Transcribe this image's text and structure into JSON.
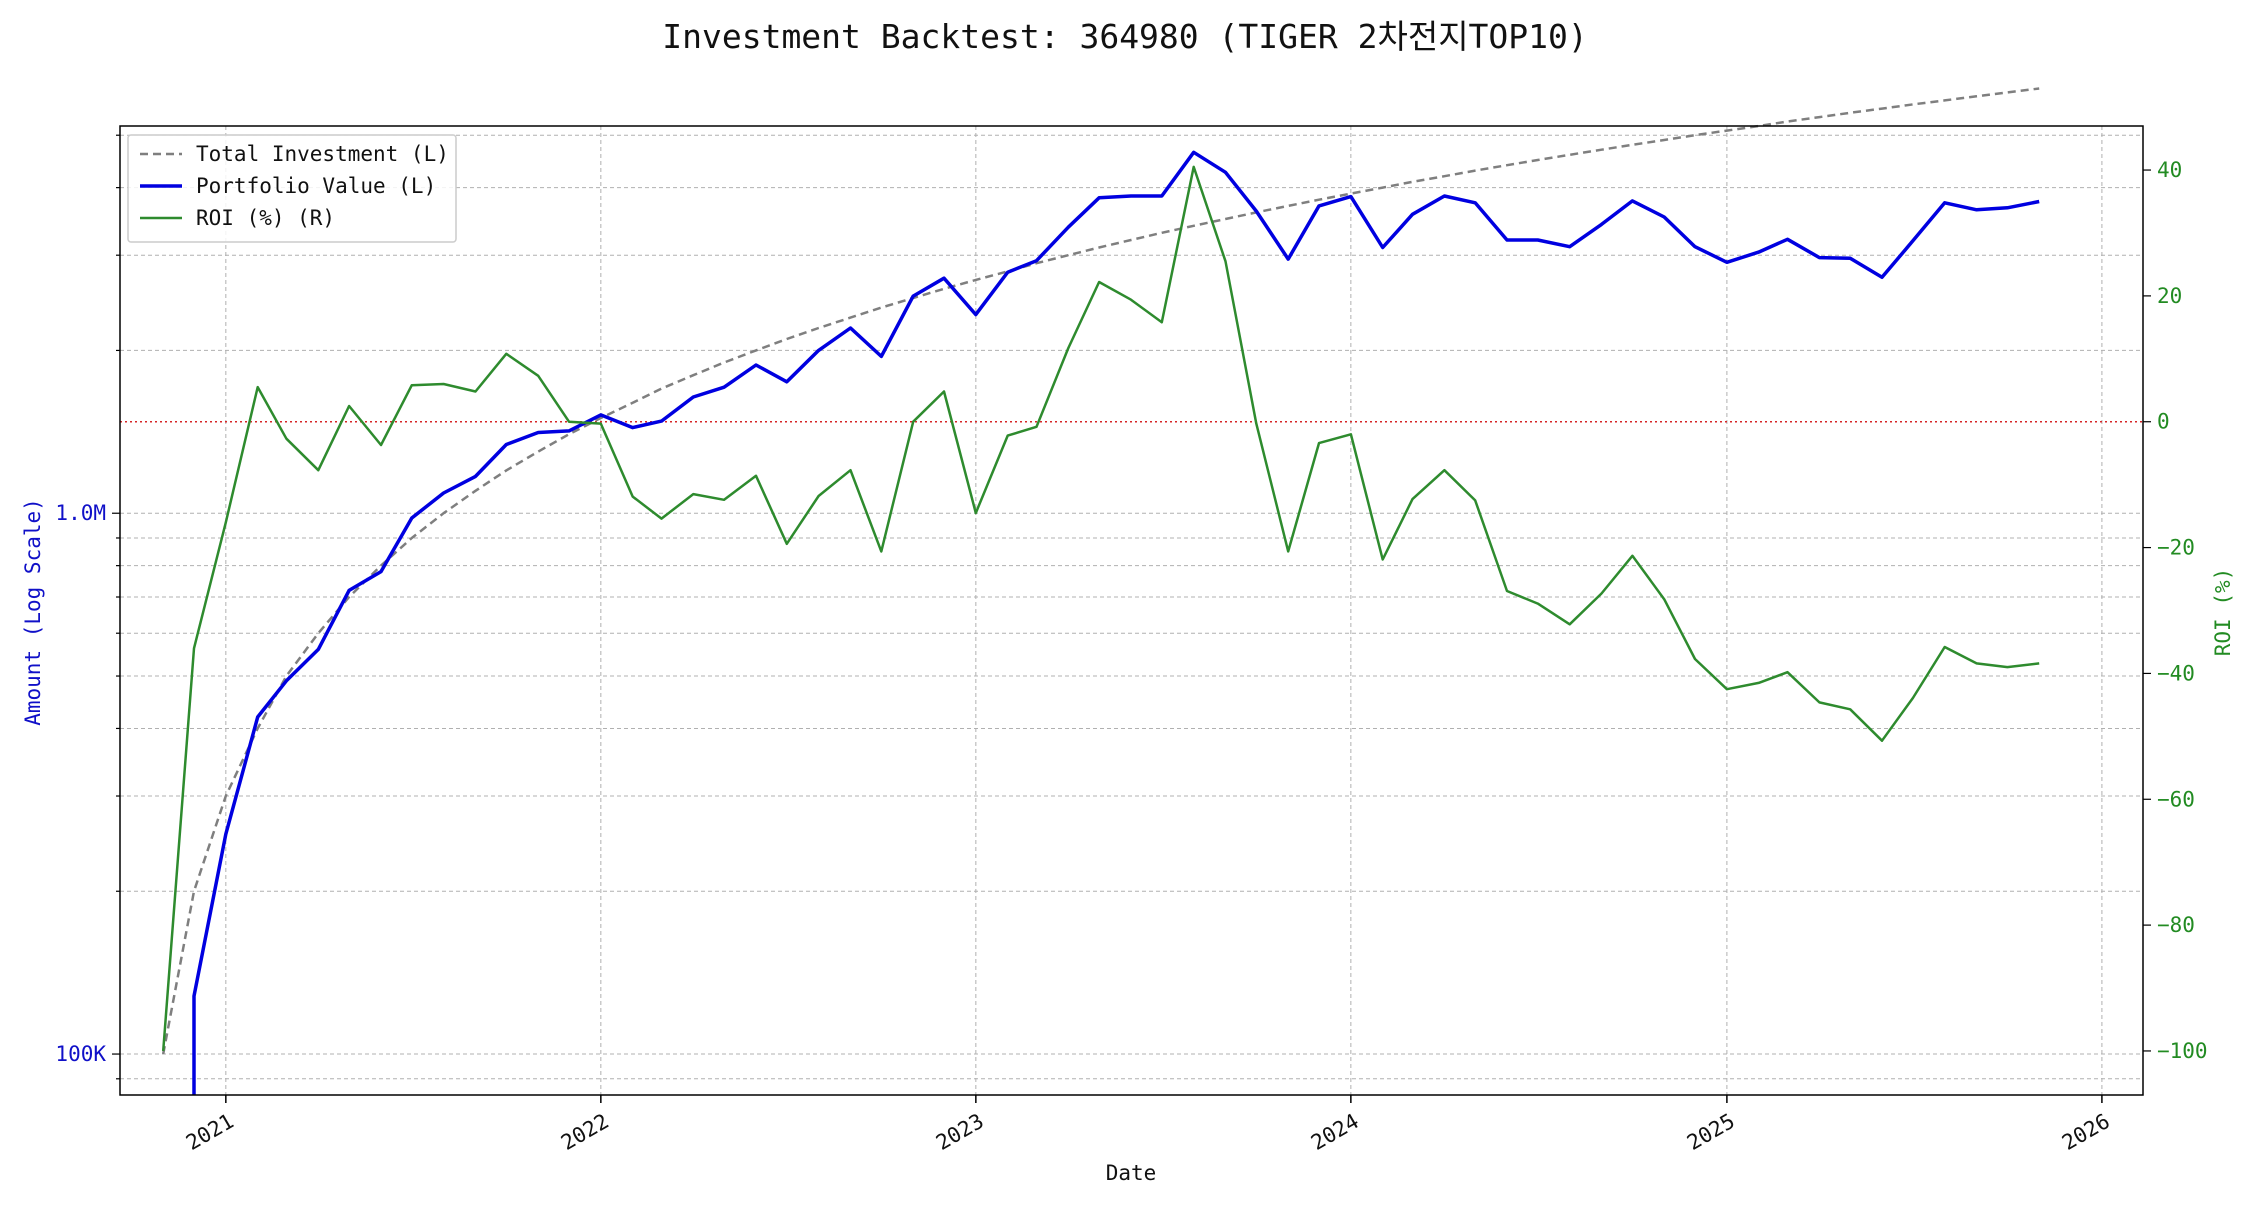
{
  "chart_data": {
    "type": "line",
    "title": "Investment Backtest: 364980 (TIGER 2차전지TOP10)",
    "xlabel": "Date",
    "ylabel_left": "Amount (Log Scale)",
    "ylabel_right": "ROI (%)",
    "left_scale": "log",
    "left_ylim": [
      84000,
      5200000
    ],
    "right_ylim": [
      -107,
      47
    ],
    "xlim": [
      "2020-09-20",
      "2026-02-10"
    ],
    "grid": true,
    "legend_position": "top-left",
    "x_ticks": [
      "2021",
      "2022",
      "2023",
      "2024",
      "2025",
      "2026"
    ],
    "left_ticks": [
      {
        "value": 100000,
        "label": "100K"
      },
      {
        "value": 1000000,
        "label": "1.0M"
      }
    ],
    "right_ticks": [
      {
        "value": 40,
        "label": "40"
      },
      {
        "value": 20,
        "label": "20"
      },
      {
        "value": 0,
        "label": "0"
      },
      {
        "value": -20,
        "label": "−20"
      },
      {
        "value": -40,
        "label": "−40"
      },
      {
        "value": -60,
        "label": "−60"
      },
      {
        "value": -80,
        "label": "−80"
      },
      {
        "value": -100,
        "label": "−100"
      }
    ],
    "colors": {
      "left_axis": "#1010c8",
      "right_axis": "#228b22",
      "zero_line": "#d62728"
    },
    "reference_line": {
      "axis": "right",
      "value": 0
    },
    "series": [
      {
        "name": "Total Investment (L)",
        "axis": "left",
        "style": "dashed",
        "color": "#7f7f7f",
        "x": [
          "2020-11-01",
          "2020-12-01",
          "2021-01-01",
          "2021-02-01",
          "2021-03-01",
          "2021-04-01",
          "2021-05-01",
          "2021-06-01",
          "2021-07-01",
          "2021-08-01",
          "2021-09-01",
          "2021-10-01",
          "2021-11-01",
          "2021-12-01",
          "2022-01-01",
          "2022-02-01",
          "2022-03-01",
          "2022-04-01",
          "2022-05-01",
          "2022-06-01",
          "2022-07-01",
          "2022-08-01",
          "2022-09-01",
          "2022-10-01",
          "2022-11-01",
          "2022-12-01",
          "2023-01-01",
          "2023-02-01",
          "2023-03-01",
          "2023-04-01",
          "2023-05-01",
          "2023-06-01",
          "2023-07-01",
          "2023-08-01",
          "2023-09-01",
          "2023-10-01",
          "2023-11-01",
          "2023-12-01",
          "2024-01-01",
          "2024-02-01",
          "2024-03-01",
          "2024-04-01",
          "2024-05-01",
          "2024-06-01",
          "2024-07-01",
          "2024-08-01",
          "2024-09-01",
          "2024-10-01",
          "2024-11-01",
          "2024-12-01",
          "2025-01-01",
          "2025-02-01",
          "2025-03-01",
          "2025-04-01",
          "2025-05-01",
          "2025-06-01",
          "2025-07-01",
          "2025-08-01",
          "2025-09-01",
          "2025-10-01",
          "2025-11-01"
        ],
        "values": [
          100000,
          200000,
          300000,
          400000,
          500000,
          600000,
          700000,
          800000,
          900000,
          1000000,
          1100000,
          1200000,
          1300000,
          1400000,
          1500000,
          1600000,
          1700000,
          1800000,
          1900000,
          2000000,
          2100000,
          2200000,
          2300000,
          2400000,
          2500000,
          2600000,
          2700000,
          2800000,
          2900000,
          3000000,
          3100000,
          3200000,
          3300000,
          3400000,
          3500000,
          3600000,
          3700000,
          3800000,
          3900000,
          4000000,
          4100000,
          4200000,
          4300000,
          4400000,
          4500000,
          4600000,
          4700000,
          4800000,
          4900000,
          5000000,
          5100000,
          5200000,
          5300000,
          5400000,
          5500000,
          5600000,
          5700000,
          5800000,
          5900000,
          6000000,
          6100000
        ]
      },
      {
        "name": "Portfolio Value (L)",
        "axis": "left",
        "style": "solid",
        "color": "#0000e0",
        "x": [
          "2020-12-01",
          "2021-01-01",
          "2021-02-01",
          "2021-03-01",
          "2021-04-01",
          "2021-05-01",
          "2021-06-01",
          "2021-07-01",
          "2021-08-01",
          "2021-09-01",
          "2021-10-01",
          "2021-11-01",
          "2021-12-01",
          "2022-01-01",
          "2022-02-01",
          "2022-03-01",
          "2022-04-01",
          "2022-05-01",
          "2022-06-01",
          "2022-07-01",
          "2022-08-01",
          "2022-09-01",
          "2022-10-01",
          "2022-11-01",
          "2022-12-01",
          "2023-01-01",
          "2023-02-01",
          "2023-03-01",
          "2023-04-01",
          "2023-05-01",
          "2023-06-01",
          "2023-07-01",
          "2023-08-01",
          "2023-09-01",
          "2023-10-01",
          "2023-11-01",
          "2023-12-01",
          "2024-01-01",
          "2024-02-01",
          "2024-03-01",
          "2024-04-01",
          "2024-05-01",
          "2024-06-01",
          "2024-07-01",
          "2024-08-01",
          "2024-09-01",
          "2024-10-01",
          "2024-11-01",
          "2024-12-01",
          "2025-01-01",
          "2025-02-01",
          "2025-03-01",
          "2025-04-01",
          "2025-05-01",
          "2025-06-01",
          "2025-07-01",
          "2025-08-01",
          "2025-09-01",
          "2025-10-01",
          "2025-11-01"
        ],
        "values": [
          128000,
          255000,
          420000,
          490000,
          560000,
          720000,
          780000,
          980000,
          1090000,
          1170000,
          1340000,
          1410000,
          1420000,
          1520000,
          1440000,
          1480000,
          1640000,
          1710000,
          1880000,
          1750000,
          2000000,
          2200000,
          1950000,
          2520000,
          2720000,
          2330000,
          2790000,
          2930000,
          3380000,
          3830000,
          3860000,
          3860000,
          4650000,
          4270000,
          3620000,
          2950000,
          3700000,
          3850000,
          3100000,
          3570000,
          3860000,
          3750000,
          3200000,
          3200000,
          3110000,
          3420000,
          3780000,
          3530000,
          3110000,
          2910000,
          3040000,
          3210000,
          2970000,
          2960000,
          2730000,
          3190000,
          3750000,
          3640000,
          3670000,
          3770000
        ]
      },
      {
        "name": "ROI (%) (R)",
        "axis": "right",
        "style": "solid",
        "color": "#2e8b2e",
        "x": [
          "2020-11-01",
          "2020-12-01",
          "2021-01-01",
          "2021-02-01",
          "2021-03-01",
          "2021-04-01",
          "2021-05-01",
          "2021-06-01",
          "2021-07-01",
          "2021-08-01",
          "2021-09-01",
          "2021-10-01",
          "2021-11-01",
          "2021-12-01",
          "2022-01-01",
          "2022-02-01",
          "2022-03-01",
          "2022-04-01",
          "2022-05-01",
          "2022-06-01",
          "2022-07-01",
          "2022-08-01",
          "2022-09-01",
          "2022-10-01",
          "2022-11-01",
          "2022-12-01",
          "2023-01-01",
          "2023-02-01",
          "2023-03-01",
          "2023-04-01",
          "2023-05-01",
          "2023-06-01",
          "2023-07-01",
          "2023-08-01",
          "2023-09-01",
          "2023-10-01",
          "2023-11-01",
          "2023-12-01",
          "2024-01-01",
          "2024-02-01",
          "2024-03-01",
          "2024-04-01",
          "2024-05-01",
          "2024-06-01",
          "2024-07-01",
          "2024-08-01",
          "2024-09-01",
          "2024-10-01",
          "2024-11-01",
          "2024-12-01",
          "2025-01-01",
          "2025-02-01",
          "2025-03-01",
          "2025-04-01",
          "2025-05-01",
          "2025-06-01",
          "2025-07-01",
          "2025-08-01",
          "2025-09-01",
          "2025-10-01",
          "2025-11-01"
        ],
        "values": [
          -100,
          -36,
          -16,
          5.5,
          -2.7,
          -7.7,
          2.5,
          -3.7,
          5.8,
          6.0,
          4.8,
          10.8,
          7.3,
          0,
          -0.3,
          -11.9,
          -15.4,
          -11.5,
          -12.4,
          -8.6,
          -19.4,
          -11.8,
          -7.7,
          -20.6,
          0,
          4.8,
          -14.5,
          -2.2,
          -0.8,
          11.7,
          22.2,
          19.4,
          15.8,
          40.5,
          25.5,
          -0.3,
          -20.6,
          -3.4,
          -2,
          -21.9,
          -12.3,
          -7.7,
          -12.5,
          -26.9,
          -28.9,
          -32.2,
          -27.3,
          -21.3,
          -28.2,
          -37.7,
          -42.5,
          -41.5,
          -39.8,
          -44.6,
          -45.7,
          -50.7,
          -43.9,
          -35.8,
          -38.4,
          -39,
          -38.4
        ]
      }
    ]
  }
}
